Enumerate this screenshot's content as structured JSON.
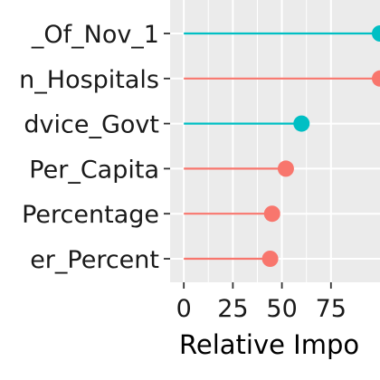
{
  "chart_data": {
    "type": "lollipop",
    "orientation": "horizontal",
    "xlabel": "Relative Impo",
    "x_ticks": [
      0,
      25,
      50,
      75
    ],
    "xlim": [
      -7,
      100
    ],
    "grid": true,
    "legend": "none",
    "categories": [
      "_Of_Nov_1",
      "n_Hospitals",
      "dvice_Govt",
      "Per_Capita",
      "Percentage",
      "er_Percent"
    ],
    "values": [
      100,
      100,
      60,
      52,
      45,
      44
    ],
    "point_colors": [
      "#00BFC4",
      "#F8766D",
      "#00BFC4",
      "#F8766D",
      "#F8766D",
      "#F8766D"
    ],
    "colors": {
      "teal": "#00BFC4",
      "salmon": "#F8766D",
      "panel": "#EBEBEB",
      "grid": "#FFFFFF"
    }
  }
}
